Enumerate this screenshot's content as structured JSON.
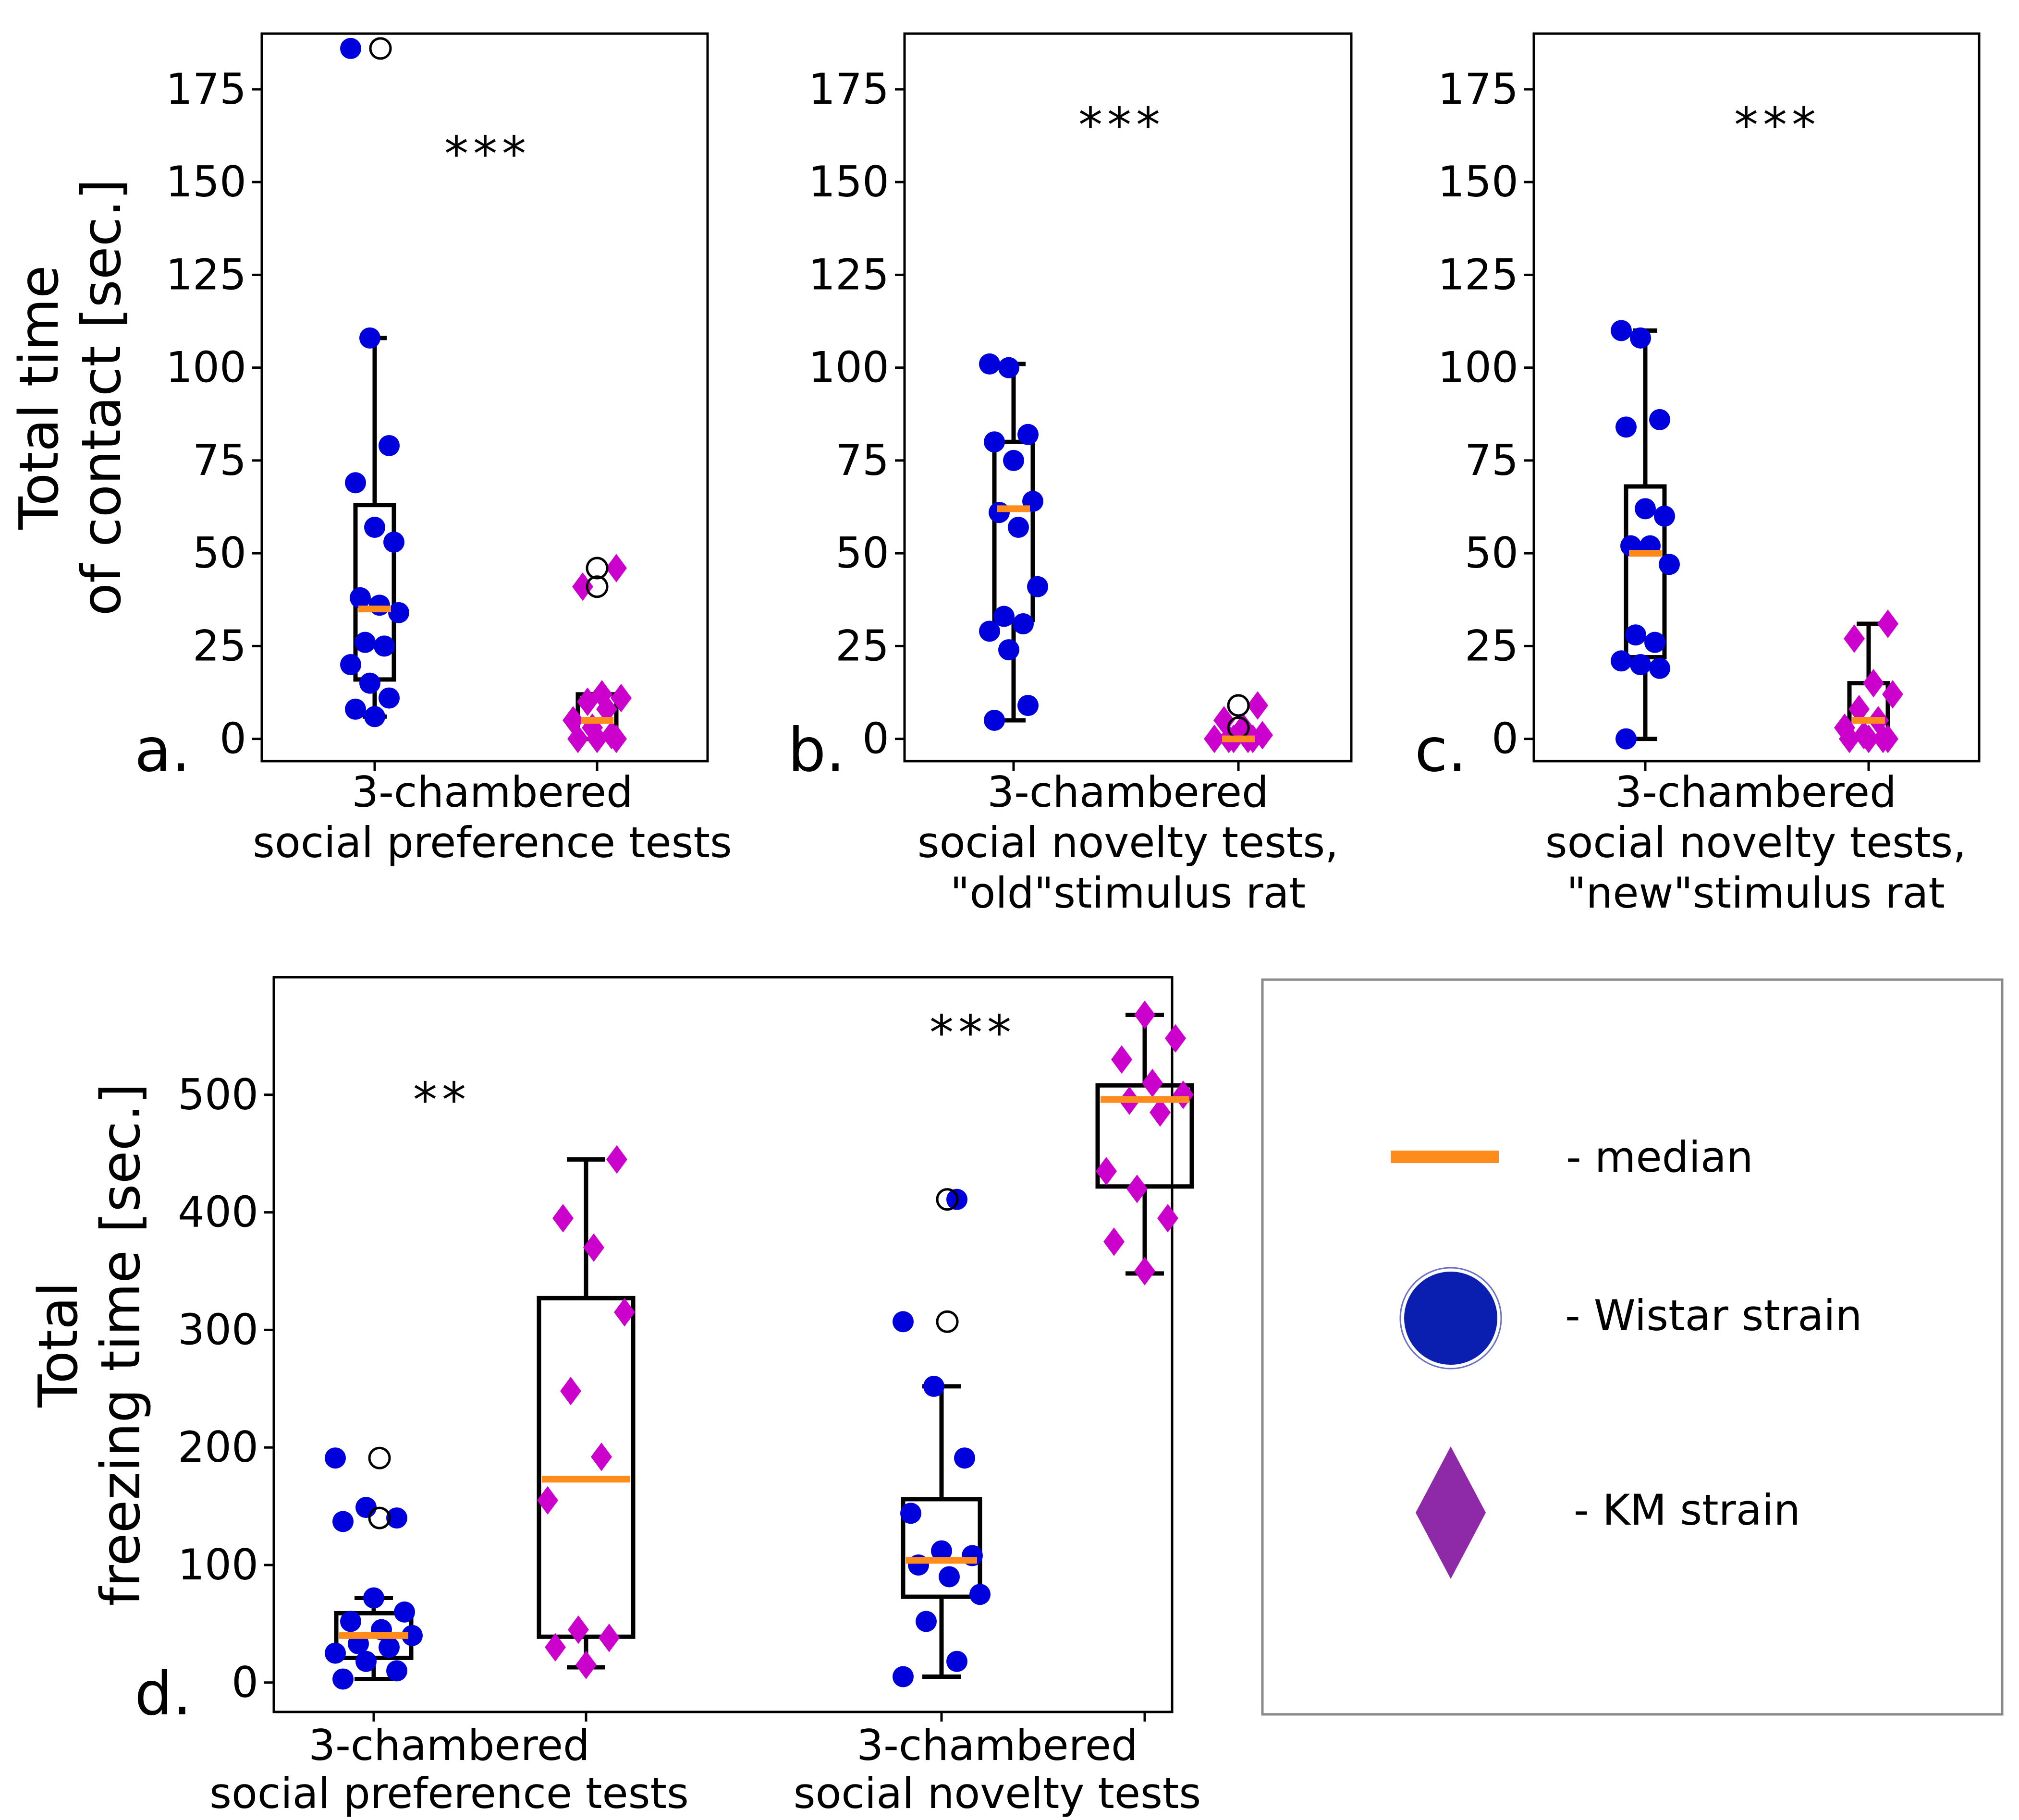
{
  "colors": {
    "wistar": "#0000dd",
    "km": "#cc00cc",
    "median": "#ff8c1a",
    "box": "#000000",
    "legend_km": "#8e29a8",
    "legend_wistar": "#0a1fb0"
  },
  "chart_data": [
    {
      "id": "a",
      "type": "box",
      "panel_letter": "a.",
      "ylabel": [
        "Total time",
        "of contact [sec.]"
      ],
      "xlabel": [
        "3-chambered",
        "social preference tests"
      ],
      "significance": "***",
      "ylim": [
        -6,
        190
      ],
      "yticks": [
        0,
        25,
        50,
        75,
        100,
        125,
        150,
        175
      ],
      "groups": [
        {
          "strain": "Wistar",
          "box": {
            "q1": 16,
            "median": 35,
            "q3": 63,
            "whisker_low": 6,
            "whisker_high": 108
          },
          "points": [
            186,
            108,
            79,
            69,
            57,
            53,
            38,
            36,
            34,
            26,
            25,
            20,
            15,
            11,
            8,
            6
          ],
          "outliers": [
            186
          ]
        },
        {
          "strain": "KM",
          "box": {
            "q1": 0,
            "median": 5,
            "q3": 12,
            "whisker_low": 0,
            "whisker_high": 12
          },
          "points": [
            46,
            41,
            12,
            11,
            10,
            8,
            5,
            3,
            1,
            0,
            0,
            0
          ],
          "outliers": [
            46,
            41
          ]
        }
      ]
    },
    {
      "id": "b",
      "type": "box",
      "panel_letter": "b.",
      "xlabel": [
        "3-chambered",
        "social novelty tests,",
        "\"old\"stimulus rat"
      ],
      "significance": "***",
      "ylim": [
        -6,
        190
      ],
      "yticks": [
        0,
        25,
        50,
        75,
        100,
        125,
        150,
        175
      ],
      "groups": [
        {
          "strain": "Wistar",
          "box": {
            "q1": 32,
            "median": 62,
            "q3": 80,
            "whisker_low": 5,
            "whisker_high": 101
          },
          "points": [
            101,
            100,
            82,
            80,
            75,
            64,
            61,
            57,
            41,
            33,
            31,
            29,
            24,
            9,
            5
          ],
          "outliers": []
        },
        {
          "strain": "KM",
          "box": {
            "q1": 0,
            "median": 0,
            "q3": 0,
            "whisker_low": 0,
            "whisker_high": 0
          },
          "points": [
            9,
            5,
            3,
            1,
            0,
            0,
            0,
            0,
            0
          ],
          "outliers": [
            9,
            3
          ]
        }
      ]
    },
    {
      "id": "c",
      "type": "box",
      "panel_letter": "c.",
      "xlabel": [
        "3-chambered",
        "social novelty tests,",
        "\"new\"stimulus rat"
      ],
      "significance": "***",
      "ylim": [
        -6,
        190
      ],
      "yticks": [
        0,
        25,
        50,
        75,
        100,
        125,
        150,
        175
      ],
      "groups": [
        {
          "strain": "Wistar",
          "box": {
            "q1": 22,
            "median": 50,
            "q3": 68,
            "whisker_low": 0,
            "whisker_high": 110
          },
          "points": [
            110,
            108,
            86,
            84,
            62,
            60,
            52,
            52,
            47,
            28,
            26,
            21,
            20,
            19,
            0
          ],
          "outliers": []
        },
        {
          "strain": "KM",
          "box": {
            "q1": 0,
            "median": 5,
            "q3": 15,
            "whisker_low": 0,
            "whisker_high": 31
          },
          "points": [
            31,
            27,
            15,
            12,
            8,
            5,
            3,
            1,
            0,
            0,
            0,
            0
          ],
          "outliers": []
        }
      ]
    },
    {
      "id": "d",
      "type": "box",
      "panel_letter": "d.",
      "ylabel": [
        "Total",
        "freezing time [sec.]"
      ],
      "ylim": [
        -25,
        600
      ],
      "yticks": [
        0,
        100,
        200,
        300,
        400,
        500
      ],
      "categories": [
        {
          "label": [
            "3-chambered",
            "social preference tests"
          ],
          "significance": "**"
        },
        {
          "label": [
            "3-chambered",
            "social novelty tests"
          ],
          "significance": "***"
        }
      ],
      "groups": [
        {
          "strain": "Wistar",
          "category": 0,
          "box": {
            "q1": 21,
            "median": 40,
            "q3": 59,
            "whisker_low": 3,
            "whisker_high": 72
          },
          "points": [
            191,
            149,
            140,
            137,
            72,
            60,
            52,
            45,
            40,
            33,
            30,
            25,
            18,
            10,
            3
          ],
          "outliers": [
            191,
            140
          ]
        },
        {
          "strain": "KM",
          "category": 0,
          "box": {
            "q1": 39,
            "median": 173,
            "q3": 327,
            "whisker_low": 13,
            "whisker_high": 445
          },
          "points": [
            445,
            395,
            370,
            315,
            248,
            192,
            155,
            45,
            38,
            30,
            15
          ],
          "outliers": []
        },
        {
          "strain": "Wistar",
          "category": 1,
          "box": {
            "q1": 73,
            "median": 104,
            "q3": 156,
            "whisker_low": 5,
            "whisker_high": 252
          },
          "points": [
            411,
            307,
            252,
            191,
            144,
            112,
            108,
            100,
            90,
            75,
            52,
            18,
            5
          ],
          "outliers": [
            411,
            307
          ]
        },
        {
          "strain": "KM",
          "category": 1,
          "box": {
            "q1": 422,
            "median": 496,
            "q3": 508,
            "whisker_low": 348,
            "whisker_high": 568
          },
          "points": [
            568,
            548,
            530,
            510,
            500,
            495,
            485,
            435,
            420,
            395,
            375,
            350
          ],
          "outliers": []
        }
      ]
    }
  ],
  "legend": {
    "items": [
      {
        "name": "median",
        "label": "- median"
      },
      {
        "name": "wistar",
        "label": "- Wistar strain"
      },
      {
        "name": "km",
        "label": "- KM strain"
      }
    ]
  }
}
